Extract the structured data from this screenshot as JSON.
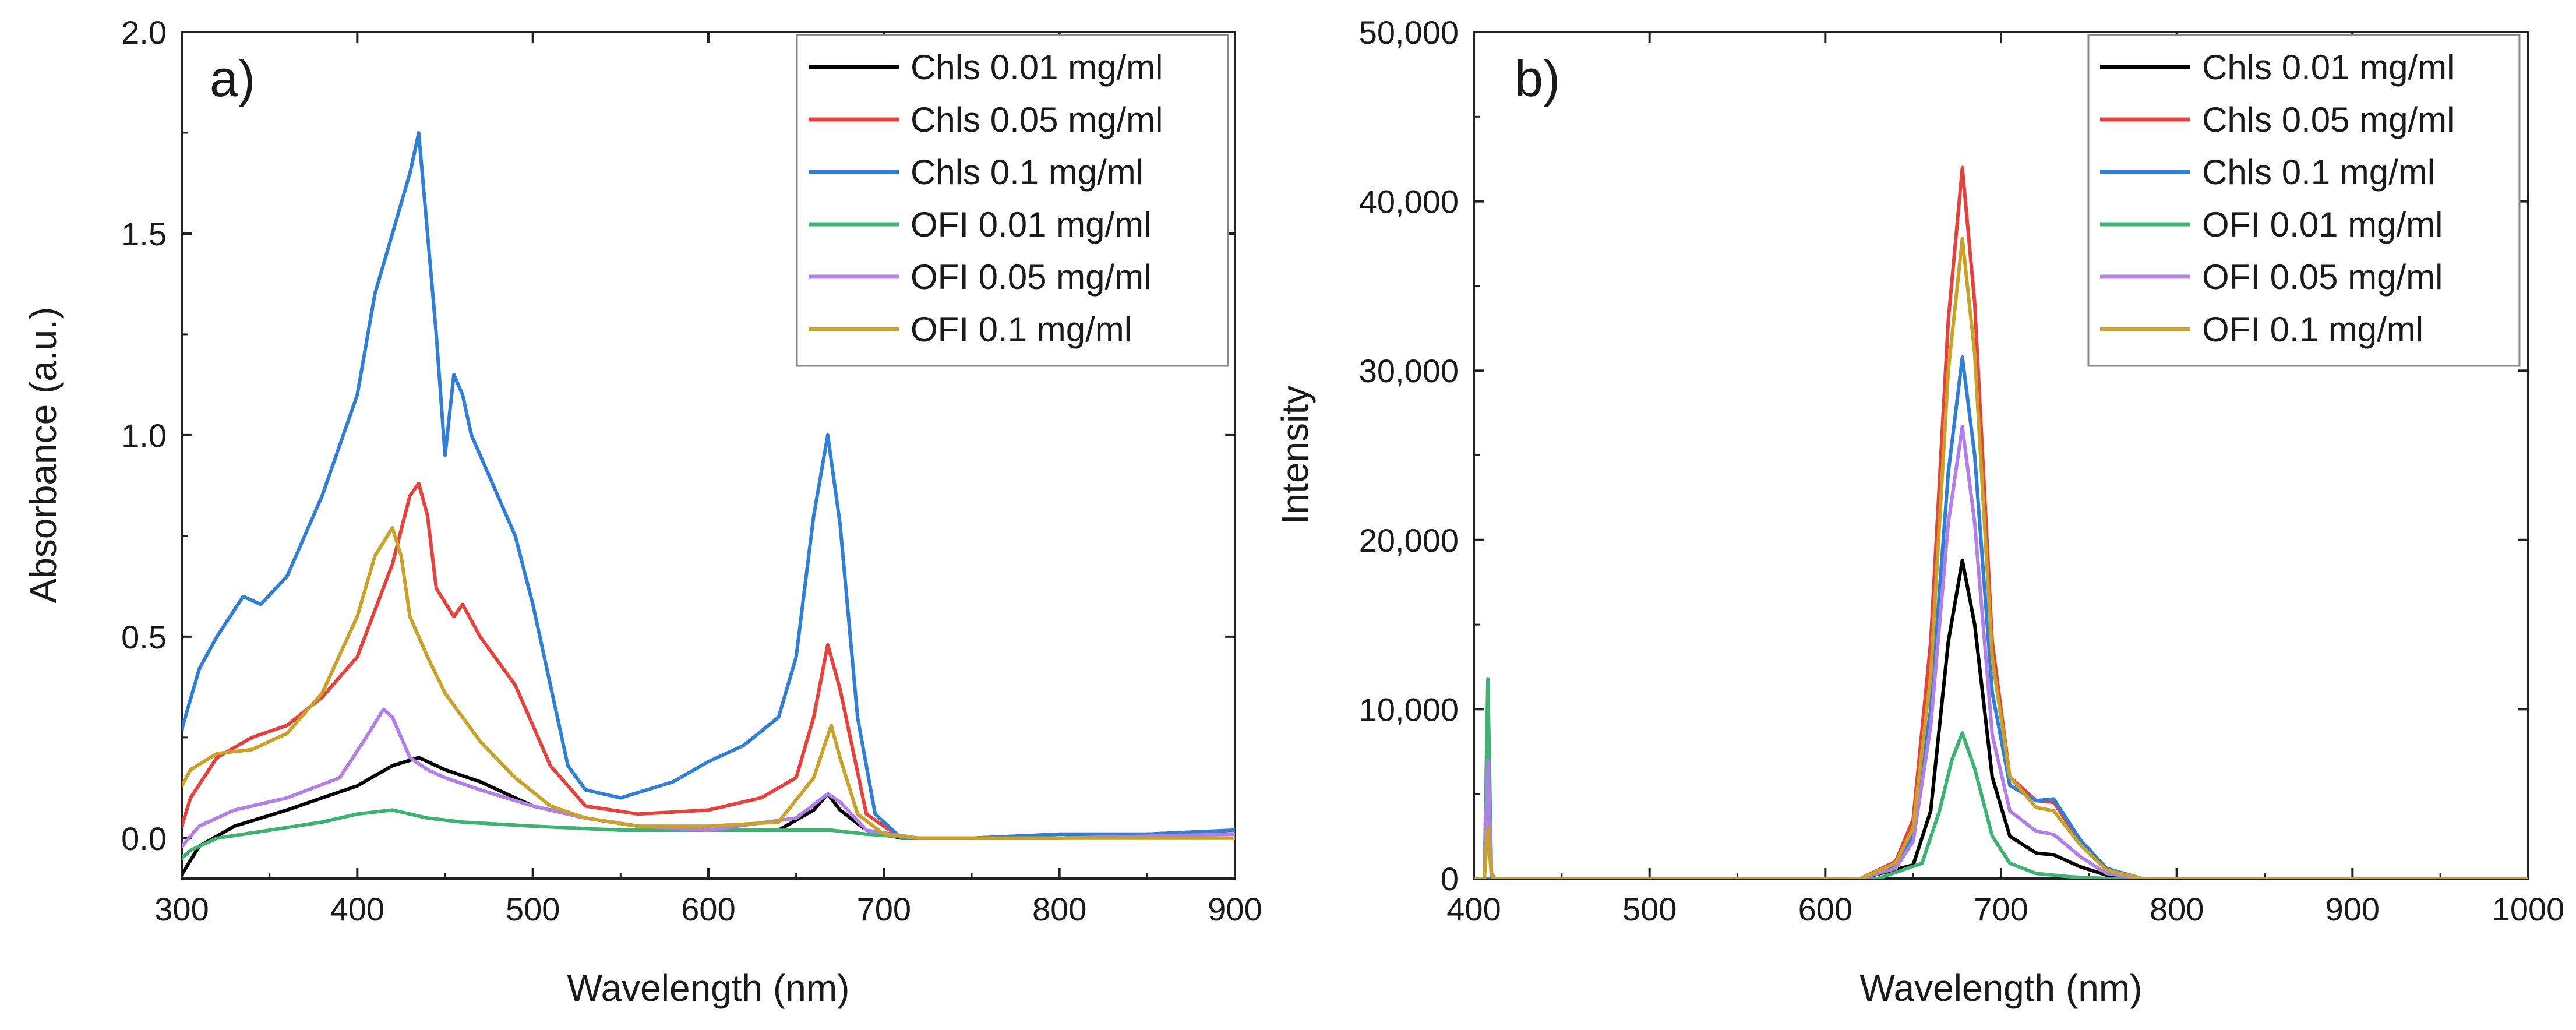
{
  "chart_data": [
    {
      "type": "line",
      "panel_label": "a)",
      "title": "",
      "xlabel": "Wavelength (nm)",
      "ylabel": "Absorbance (a.u.)",
      "xlim": [
        300,
        900
      ],
      "ylim": [
        -0.1,
        2.0
      ],
      "xticks": [
        300,
        400,
        500,
        600,
        700,
        800,
        900
      ],
      "xtick_labels": [
        "300",
        "400",
        "500",
        "600",
        "700",
        "800",
        "900"
      ],
      "yticks": [
        0.0,
        0.5,
        1.0,
        1.5,
        2.0
      ],
      "ytick_labels": [
        "0.0",
        "0.5",
        "1.0",
        "1.5",
        "2.0"
      ],
      "grid": false,
      "legend_position": "top-right",
      "series": [
        {
          "name": "Chls 0.01 mg/ml",
          "color": "#000000",
          "x": [
            300,
            310,
            330,
            360,
            380,
            400,
            420,
            435,
            450,
            470,
            500,
            530,
            560,
            600,
            640,
            660,
            668,
            675,
            690,
            710,
            750,
            800,
            850,
            900
          ],
          "y": [
            -0.09,
            -0.02,
            0.03,
            0.07,
            0.1,
            0.13,
            0.18,
            0.2,
            0.17,
            0.14,
            0.08,
            0.05,
            0.03,
            0.02,
            0.02,
            0.07,
            0.11,
            0.07,
            0.02,
            0.0,
            0.0,
            0.01,
            0.01,
            0.02
          ]
        },
        {
          "name": "Chls 0.05 mg/ml",
          "color": "#e8413c",
          "x": [
            300,
            305,
            320,
            340,
            360,
            380,
            400,
            420,
            430,
            435,
            440,
            445,
            455,
            460,
            470,
            490,
            510,
            530,
            560,
            600,
            630,
            650,
            660,
            668,
            675,
            690,
            710,
            750,
            800,
            850,
            900
          ],
          "y": [
            0.03,
            0.1,
            0.2,
            0.25,
            0.28,
            0.35,
            0.45,
            0.68,
            0.85,
            0.88,
            0.8,
            0.62,
            0.55,
            0.58,
            0.5,
            0.38,
            0.18,
            0.08,
            0.06,
            0.07,
            0.1,
            0.15,
            0.3,
            0.48,
            0.37,
            0.06,
            0.0,
            0.0,
            0.0,
            0.01,
            0.01
          ]
        },
        {
          "name": "Chls 0.1 mg/ml",
          "color": "#2f7fd8",
          "x": [
            300,
            310,
            320,
            335,
            345,
            360,
            380,
            400,
            410,
            420,
            430,
            435,
            440,
            445,
            450,
            455,
            460,
            465,
            470,
            480,
            490,
            500,
            510,
            520,
            530,
            550,
            580,
            600,
            620,
            640,
            650,
            660,
            668,
            675,
            685,
            695,
            710,
            750,
            800,
            850,
            900
          ],
          "y": [
            0.27,
            0.42,
            0.5,
            0.6,
            0.58,
            0.65,
            0.85,
            1.1,
            1.35,
            1.5,
            1.65,
            1.75,
            1.5,
            1.25,
            0.95,
            1.15,
            1.1,
            1.0,
            0.95,
            0.85,
            0.75,
            0.58,
            0.38,
            0.18,
            0.12,
            0.1,
            0.14,
            0.19,
            0.23,
            0.3,
            0.45,
            0.8,
            1.0,
            0.78,
            0.3,
            0.06,
            0.0,
            0.0,
            0.01,
            0.01,
            0.02
          ]
        },
        {
          "name": "OFI 0.01 mg/ml",
          "color": "#3cb371",
          "x": [
            300,
            305,
            320,
            350,
            380,
            400,
            420,
            440,
            460,
            500,
            550,
            600,
            650,
            670,
            690,
            720,
            800,
            900
          ],
          "y": [
            -0.05,
            -0.03,
            0.0,
            0.02,
            0.04,
            0.06,
            0.07,
            0.05,
            0.04,
            0.03,
            0.02,
            0.02,
            0.02,
            0.02,
            0.01,
            0.0,
            0.0,
            0.01
          ]
        },
        {
          "name": "OFI 0.05 mg/ml",
          "color": "#b07fe8",
          "x": [
            300,
            310,
            330,
            360,
            390,
            405,
            415,
            420,
            425,
            430,
            440,
            450,
            470,
            500,
            530,
            560,
            600,
            650,
            668,
            675,
            690,
            720,
            800,
            900
          ],
          "y": [
            -0.02,
            0.03,
            0.07,
            0.1,
            0.15,
            0.25,
            0.32,
            0.3,
            0.25,
            0.2,
            0.17,
            0.15,
            0.12,
            0.08,
            0.05,
            0.03,
            0.02,
            0.05,
            0.11,
            0.09,
            0.02,
            0.0,
            0.0,
            0.01
          ]
        },
        {
          "name": "OFI 0.1 mg/ml",
          "color": "#c9a227",
          "x": [
            300,
            305,
            320,
            340,
            360,
            380,
            400,
            410,
            420,
            425,
            430,
            440,
            450,
            460,
            470,
            490,
            510,
            530,
            560,
            600,
            640,
            660,
            670,
            675,
            685,
            700,
            720,
            800,
            900
          ],
          "y": [
            0.13,
            0.17,
            0.21,
            0.22,
            0.26,
            0.36,
            0.55,
            0.7,
            0.77,
            0.7,
            0.55,
            0.45,
            0.36,
            0.3,
            0.24,
            0.15,
            0.08,
            0.05,
            0.03,
            0.03,
            0.04,
            0.15,
            0.28,
            0.2,
            0.06,
            0.01,
            0.0,
            0.0,
            0.0
          ]
        }
      ]
    },
    {
      "type": "line",
      "panel_label": "b)",
      "title": "",
      "xlabel": "Wavelength (nm)",
      "ylabel": "Intensity",
      "xlim": [
        400,
        1000
      ],
      "ylim": [
        0,
        50000
      ],
      "xticks": [
        400,
        500,
        600,
        700,
        800,
        900,
        1000
      ],
      "xtick_labels": [
        "400",
        "500",
        "600",
        "700",
        "800",
        "900",
        "1000"
      ],
      "yticks": [
        0,
        10000,
        20000,
        30000,
        40000,
        50000
      ],
      "ytick_labels": [
        "0",
        "10,000",
        "20,000",
        "30,000",
        "40,000",
        "50,000"
      ],
      "grid": false,
      "legend_position": "top-right",
      "series": [
        {
          "name": "Chls 0.01 mg/ml",
          "color": "#000000",
          "x": [
            400,
            620,
            650,
            660,
            670,
            678,
            685,
            695,
            705,
            720,
            730,
            745,
            760,
            780,
            1000
          ],
          "y": [
            0,
            0,
            800,
            4000,
            14000,
            18800,
            15000,
            6000,
            2500,
            1500,
            1400,
            700,
            200,
            0,
            0
          ]
        },
        {
          "name": "Chls 0.05 mg/ml",
          "color": "#e8413c",
          "x": [
            400,
            620,
            640,
            650,
            660,
            670,
            678,
            685,
            695,
            705,
            720,
            730,
            745,
            760,
            780,
            1000
          ],
          "y": [
            0,
            0,
            1000,
            3500,
            14000,
            33000,
            42000,
            34000,
            14000,
            6000,
            4600,
            4500,
            2200,
            600,
            0,
            0
          ]
        },
        {
          "name": "Chls 0.1 mg/ml",
          "color": "#2f7fd8",
          "x": [
            400,
            620,
            640,
            650,
            660,
            670,
            678,
            685,
            695,
            705,
            720,
            730,
            745,
            760,
            780,
            1000
          ],
          "y": [
            0,
            0,
            700,
            2500,
            10000,
            24000,
            30800,
            25000,
            11000,
            5500,
            4600,
            4700,
            2300,
            600,
            0,
            0
          ]
        },
        {
          "name": "OFI 0.01 mg/ml",
          "color": "#3cb371",
          "x": [
            400,
            406,
            408,
            410,
            412,
            630,
            655,
            665,
            672,
            678,
            685,
            695,
            705,
            720,
            740,
            760,
            1000
          ],
          "y": [
            0,
            0,
            11800,
            300,
            0,
            0,
            900,
            4000,
            7000,
            8600,
            6500,
            2500,
            900,
            300,
            100,
            0,
            0
          ]
        },
        {
          "name": "OFI 0.05 mg/ml",
          "color": "#b07fe8",
          "x": [
            400,
            406,
            408,
            410,
            412,
            620,
            640,
            650,
            660,
            670,
            678,
            685,
            695,
            705,
            720,
            730,
            745,
            760,
            780,
            1000
          ],
          "y": [
            0,
            0,
            7000,
            200,
            0,
            0,
            600,
            2200,
            9000,
            21000,
            26700,
            21000,
            8500,
            4000,
            2800,
            2600,
            1300,
            300,
            0,
            0
          ]
        },
        {
          "name": "OFI 0.1 mg/ml",
          "color": "#c9a227",
          "x": [
            400,
            406,
            408,
            410,
            412,
            620,
            640,
            650,
            660,
            670,
            678,
            685,
            695,
            705,
            720,
            730,
            745,
            760,
            780,
            1000
          ],
          "y": [
            0,
            0,
            3000,
            150,
            0,
            0,
            900,
            3000,
            12000,
            30000,
            37800,
            31000,
            13000,
            6000,
            4200,
            4000,
            2000,
            500,
            0,
            0
          ]
        }
      ]
    }
  ]
}
